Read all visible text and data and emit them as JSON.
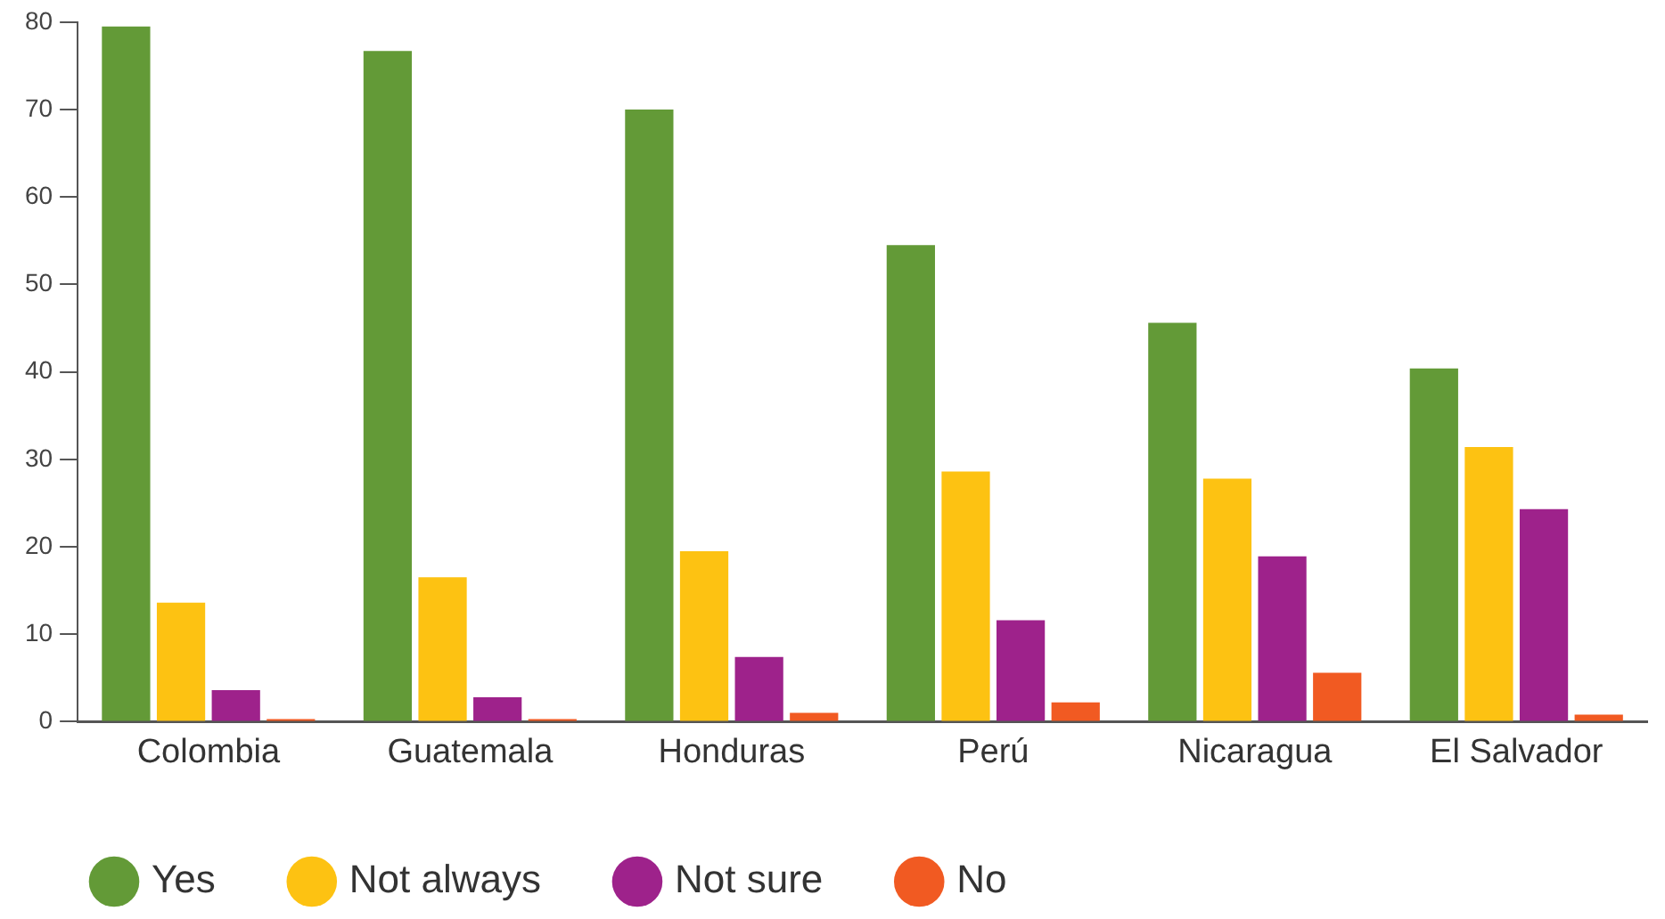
{
  "chart_data": {
    "type": "bar",
    "categories": [
      "Colombia",
      "Guatemala",
      "Honduras",
      "Perú",
      "Nicaragua",
      "El Salvador"
    ],
    "series": [
      {
        "name": "Yes",
        "color": "#639a37",
        "values": [
          79.5,
          76.7,
          70,
          54.5,
          45.6,
          40.4
        ]
      },
      {
        "name": "Not always",
        "color": "#fdc212",
        "values": [
          13.6,
          16.5,
          19.5,
          28.6,
          27.8,
          31.4
        ]
      },
      {
        "name": "Not sure",
        "color": "#9e228b",
        "values": [
          3.6,
          2.8,
          7.4,
          11.6,
          18.9,
          24.3
        ]
      },
      {
        "name": "No",
        "color": "#f15a22",
        "values": [
          0.3,
          0.3,
          1.0,
          2.2,
          5.6,
          0.8
        ]
      }
    ],
    "ylim": [
      0,
      80
    ],
    "yticks": [
      0,
      10,
      20,
      30,
      40,
      50,
      60,
      70,
      80
    ],
    "grid": false,
    "legend": "bottom left"
  }
}
